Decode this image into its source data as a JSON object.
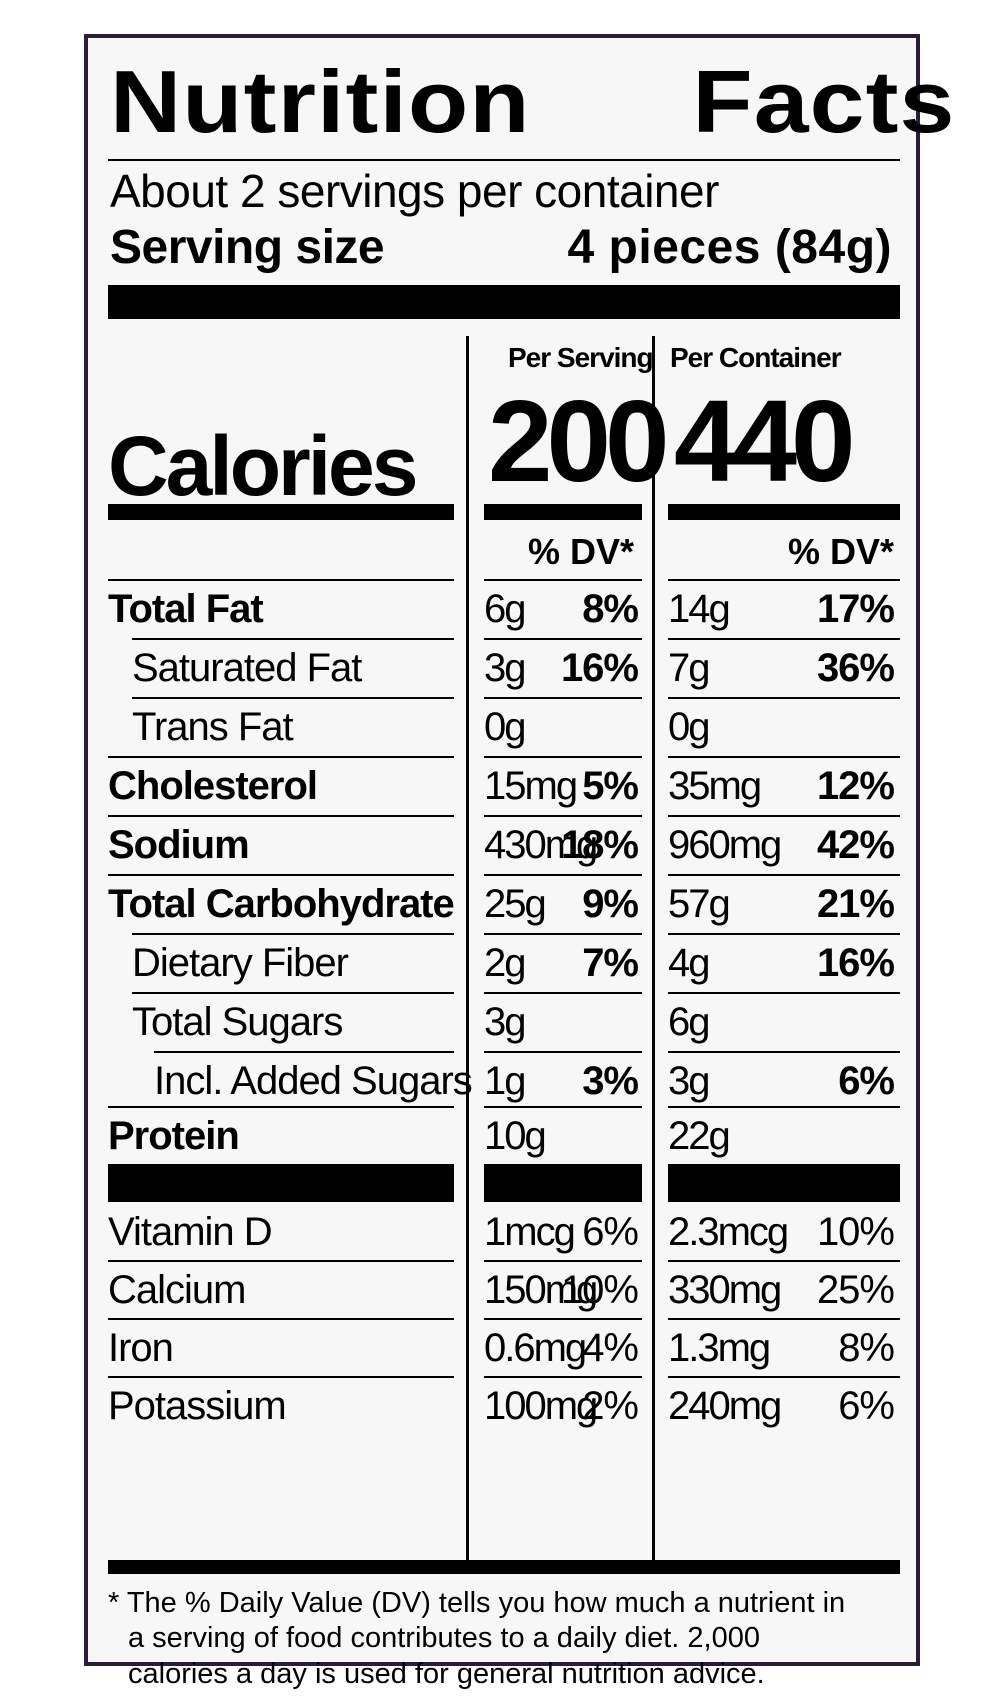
{
  "title_left": "Nutrition",
  "title_right": "Facts",
  "servings_per_container": "About 2 servings per container",
  "serving_size_label": "Serving size",
  "serving_size_value": "4 pieces (84g)",
  "col_per_serving": "Per Serving",
  "col_per_container": "Per Container",
  "calories_label": "Calories",
  "calories_per_serving": "200",
  "calories_per_container": "440",
  "dv_header": "% DV*",
  "nutrients": [
    {
      "label": "Total Fat",
      "s_amt": "6g",
      "s_pct": "8%",
      "c_amt": "14g",
      "c_pct": "17%"
    },
    {
      "label": "Saturated Fat",
      "s_amt": "3g",
      "s_pct": "16%",
      "c_amt": "7g",
      "c_pct": "36%"
    },
    {
      "label": "Trans Fat",
      "s_amt": "0g",
      "s_pct": "",
      "c_amt": "0g",
      "c_pct": ""
    },
    {
      "label": "Cholesterol",
      "s_amt": "15mg",
      "s_pct": "5%",
      "c_amt": "35mg",
      "c_pct": "12%"
    },
    {
      "label": "Sodium",
      "s_amt": "430mg",
      "s_pct": "18%",
      "c_amt": "960mg",
      "c_pct": "42%"
    },
    {
      "label": "Total Carbohydrate",
      "s_amt": "25g",
      "s_pct": "9%",
      "c_amt": "57g",
      "c_pct": "21%"
    },
    {
      "label": "Dietary Fiber",
      "s_amt": "2g",
      "s_pct": "7%",
      "c_amt": "4g",
      "c_pct": "16%"
    },
    {
      "label": "Total Sugars",
      "s_amt": "3g",
      "s_pct": "",
      "c_amt": "6g",
      "c_pct": ""
    },
    {
      "label": "Incl. Added Sugars",
      "s_amt": "1g",
      "s_pct": "3%",
      "c_amt": "3g",
      "c_pct": "6%"
    },
    {
      "label": "Protein",
      "s_amt": "10g",
      "s_pct": "",
      "c_amt": "22g",
      "c_pct": ""
    }
  ],
  "micros": [
    {
      "label": "Vitamin D",
      "s_amt": "1mcg",
      "s_pct": "6%",
      "c_amt": "2.3mcg",
      "c_pct": "10%"
    },
    {
      "label": "Calcium",
      "s_amt": "150mg",
      "s_pct": "10%",
      "c_amt": "330mg",
      "c_pct": "25%"
    },
    {
      "label": "Iron",
      "s_amt": "0.6mg",
      "s_pct": "4%",
      "c_amt": "1.3mg",
      "c_pct": "8%"
    },
    {
      "label": "Potassium",
      "s_amt": "100mg",
      "s_pct": "2%",
      "c_amt": "240mg",
      "c_pct": "6%"
    }
  ],
  "footnote_line1": "* The % Daily Value (DV) tells you how much a nutrient in",
  "footnote_line2": "a serving of food contributes to a daily diet. 2,000",
  "footnote_line3": "calories a day is used for general nutrition advice.",
  "colors": {
    "border": "#2c1b3b",
    "background": "#f7f7f7",
    "ink": "#000000"
  }
}
